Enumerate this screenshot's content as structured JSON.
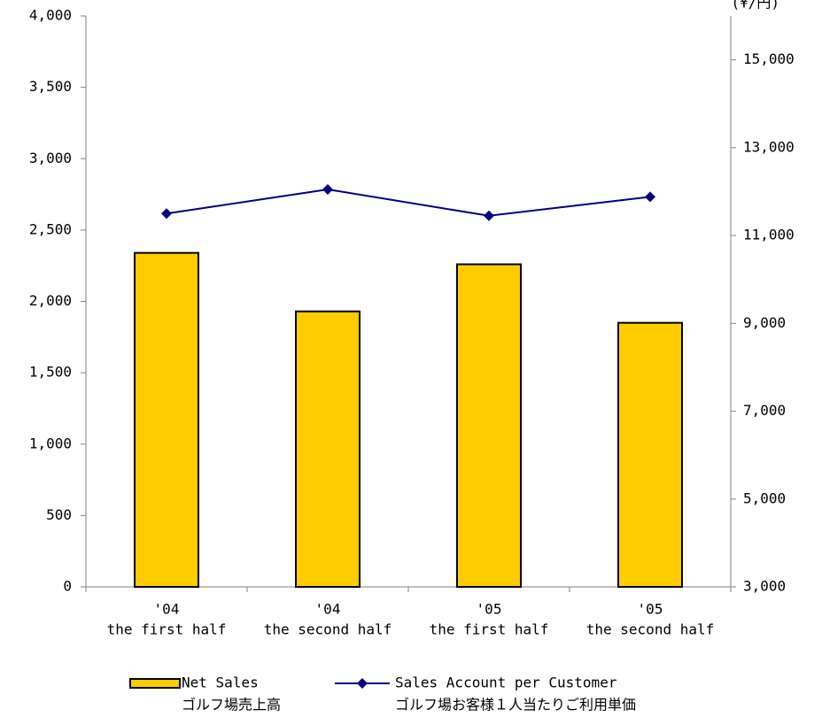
{
  "chart_data": {
    "type": "bar_line",
    "y2_unit": "(¥/円)",
    "categories": [
      [
        "'04",
        "the first half"
      ],
      [
        "'04",
        "the second half"
      ],
      [
        "'05",
        "the first half"
      ],
      [
        "'05",
        "the second half"
      ]
    ],
    "series": [
      {
        "name": [
          "Net Sales",
          "ゴルフ場売上高"
        ],
        "type": "bar",
        "color": "#ffcc00",
        "values": [
          2340,
          1930,
          2260,
          1850
        ]
      },
      {
        "name": [
          "Sales Account per Customer",
          "ゴルフ場お客様１人当たりご利用単価"
        ],
        "type": "line",
        "axis": "y2",
        "color": "#000080",
        "values": [
          11500,
          12050,
          11450,
          11880
        ]
      }
    ],
    "ylim": [
      0,
      4000
    ],
    "yticks": [
      {
        "value": 0,
        "label": "0"
      },
      {
        "value": 500,
        "label": "500"
      },
      {
        "value": 1000,
        "label": "1,000"
      },
      {
        "value": 1500,
        "label": "1,500"
      },
      {
        "value": 2000,
        "label": "2,000"
      },
      {
        "value": 2500,
        "label": "2,500"
      },
      {
        "value": 3000,
        "label": "3,000"
      },
      {
        "value": 3500,
        "label": "3,500"
      },
      {
        "value": 4000,
        "label": "4,000"
      }
    ],
    "y2lim": [
      3000,
      16000
    ],
    "y2ticks": [
      {
        "value": 3000,
        "label": "3,000"
      },
      {
        "value": 5000,
        "label": "5,000"
      },
      {
        "value": 7000,
        "label": "7,000"
      },
      {
        "value": 9000,
        "label": "9,000"
      },
      {
        "value": 11000,
        "label": "11,000"
      },
      {
        "value": 13000,
        "label": "13,000"
      },
      {
        "value": 15000,
        "label": "15,000"
      }
    ],
    "grid": false
  }
}
